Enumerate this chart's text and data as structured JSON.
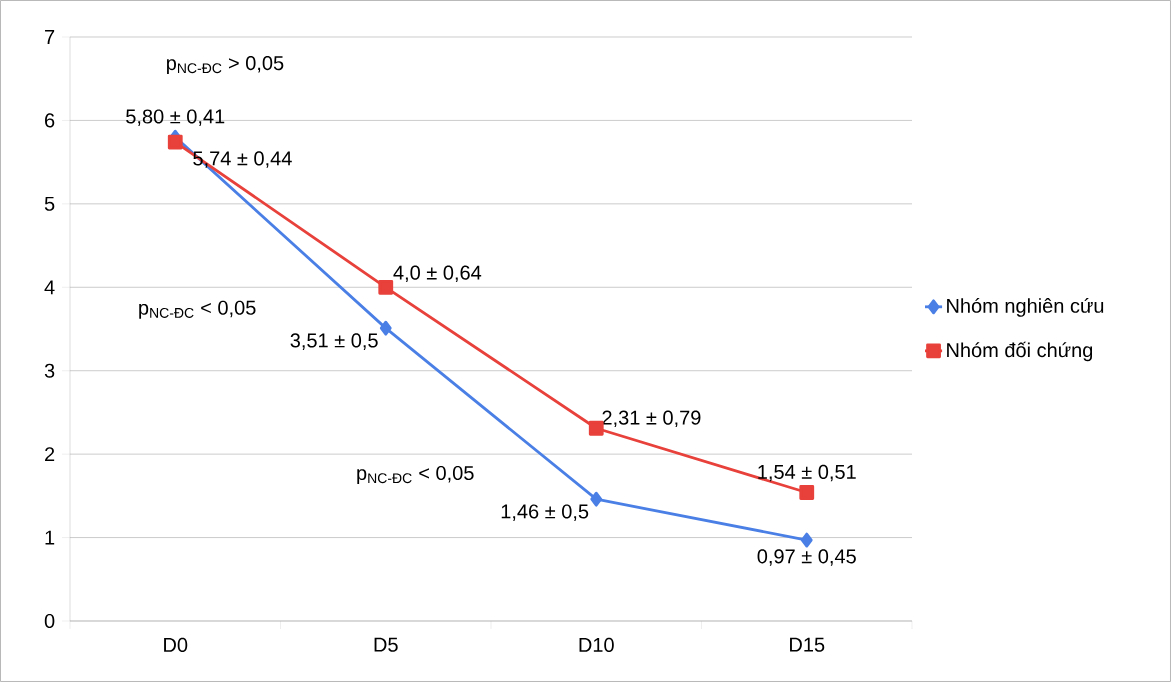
{
  "chart_data": {
    "type": "line",
    "categories": [
      "D0",
      "D5",
      "D10",
      "D15"
    ],
    "series": [
      {
        "name": "Nhóm nghiên cứu",
        "color": "#4a7fe6",
        "marker": "diamond",
        "values": [
          5.8,
          3.51,
          1.46,
          0.97
        ],
        "value_labels": [
          "5,80 ± 0,41",
          "3,51 ± 0,5",
          "1,46 ± 0,5",
          "0,97 ± 0,45"
        ]
      },
      {
        "name": "Nhóm đối chứng",
        "color": "#e8403a",
        "marker": "square",
        "values": [
          5.74,
          4.0,
          2.31,
          1.54
        ],
        "value_labels": [
          "5,74 ± 0,44",
          "4,0 ± 0,64",
          "2,31 ± 0,79",
          "1,54 ± 0,51"
        ]
      }
    ],
    "annotations": [
      "p$_{NC-ĐC}$ > 0,05",
      "p$_{NC-ĐC}$ < 0,05",
      "p$_{NC-ĐC}$ < 0,05"
    ],
    "ylim": [
      0,
      7
    ],
    "yticks": [
      0,
      1,
      2,
      3,
      4,
      5,
      6,
      7
    ],
    "grid": "y",
    "legend": "right",
    "line_style": "solid"
  }
}
